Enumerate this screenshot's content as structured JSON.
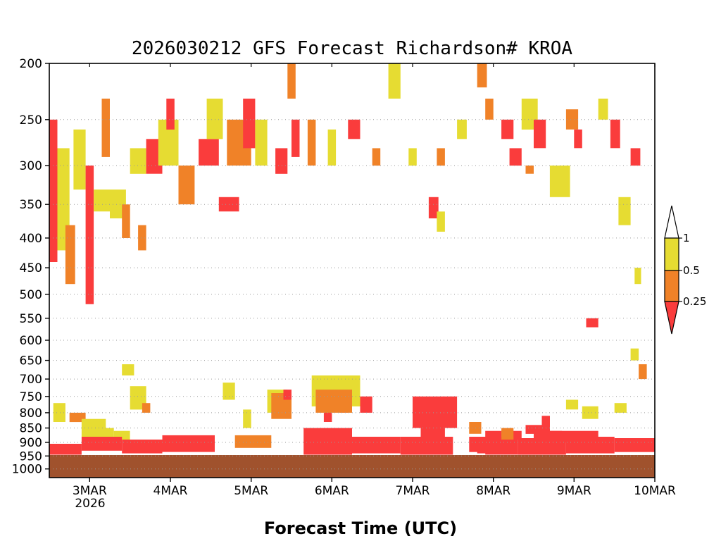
{
  "chart_data": {
    "type": "heatmap",
    "title": "2026030212 GFS Forecast Richardson# KROA",
    "xlabel": "Forecast Time (UTC)",
    "ylabel": "",
    "y_scale": "log-pressure",
    "ylim": [
      1000,
      200
    ],
    "y_ticks": [
      "200",
      "250",
      "300",
      "350",
      "400",
      "450",
      "500",
      "550",
      "600",
      "650",
      "700",
      "750",
      "800",
      "850",
      "900",
      "950",
      "1000"
    ],
    "y_tick_values": [
      200,
      250,
      300,
      350,
      400,
      450,
      500,
      550,
      600,
      650,
      700,
      750,
      800,
      850,
      900,
      950,
      1000
    ],
    "x_range_days": [
      "2026-03-02T12",
      "2026-03-10T00"
    ],
    "x_ticks": [
      "3MAR",
      "4MAR",
      "5MAR",
      "6MAR",
      "7MAR",
      "8MAR",
      "9MAR",
      "10MAR"
    ],
    "x_tick_year": "2026",
    "grid": "dotted horizontal at pressure levels",
    "colorbar": {
      "levels": [
        "1",
        "0.5",
        "0.25"
      ],
      "bins": [
        {
          "range": "0.5-1",
          "color": "#e6dc32"
        },
        {
          "range": "0.25-0.5",
          "color": "#f08228"
        },
        {
          "range": "<0.25",
          "color": "#fa3c3c"
        }
      ],
      "extend": "both"
    },
    "colors": {
      "yellow": "#e6dc32",
      "orange": "#f08228",
      "red": "#fa3c3c",
      "ground": "#a0522d"
    },
    "patches": [
      {
        "t": 0.0,
        "dt": 0.1,
        "p1": 250,
        "p2": 440,
        "c": "red"
      },
      {
        "t": 0.1,
        "dt": 0.15,
        "p1": 280,
        "p2": 420,
        "c": "yellow"
      },
      {
        "t": 0.2,
        "dt": 0.12,
        "p1": 380,
        "p2": 480,
        "c": "orange"
      },
      {
        "t": 0.3,
        "dt": 0.15,
        "p1": 260,
        "p2": 330,
        "c": "yellow"
      },
      {
        "t": 0.45,
        "dt": 0.1,
        "p1": 300,
        "p2": 520,
        "c": "red"
      },
      {
        "t": 0.55,
        "dt": 0.2,
        "p1": 330,
        "p2": 360,
        "c": "yellow"
      },
      {
        "t": 0.65,
        "dt": 0.1,
        "p1": 230,
        "p2": 290,
        "c": "orange"
      },
      {
        "t": 0.75,
        "dt": 0.2,
        "p1": 330,
        "p2": 370,
        "c": "yellow"
      },
      {
        "t": 0.9,
        "dt": 0.1,
        "p1": 350,
        "p2": 400,
        "c": "orange"
      },
      {
        "t": 1.0,
        "dt": 0.2,
        "p1": 280,
        "p2": 310,
        "c": "yellow"
      },
      {
        "t": 1.1,
        "dt": 0.1,
        "p1": 380,
        "p2": 420,
        "c": "orange"
      },
      {
        "t": 1.2,
        "dt": 0.2,
        "p1": 270,
        "p2": 310,
        "c": "red"
      },
      {
        "t": 1.35,
        "dt": 0.25,
        "p1": 250,
        "p2": 300,
        "c": "yellow"
      },
      {
        "t": 1.45,
        "dt": 0.1,
        "p1": 230,
        "p2": 260,
        "c": "red"
      },
      {
        "t": 1.6,
        "dt": 0.2,
        "p1": 300,
        "p2": 350,
        "c": "orange"
      },
      {
        "t": 1.85,
        "dt": 0.25,
        "p1": 270,
        "p2": 300,
        "c": "red"
      },
      {
        "t": 1.95,
        "dt": 0.2,
        "p1": 230,
        "p2": 270,
        "c": "yellow"
      },
      {
        "t": 2.1,
        "dt": 0.25,
        "p1": 340,
        "p2": 360,
        "c": "red"
      },
      {
        "t": 2.2,
        "dt": 0.3,
        "p1": 250,
        "p2": 300,
        "c": "orange"
      },
      {
        "t": 2.4,
        "dt": 0.15,
        "p1": 230,
        "p2": 280,
        "c": "red"
      },
      {
        "t": 2.55,
        "dt": 0.15,
        "p1": 250,
        "p2": 300,
        "c": "yellow"
      },
      {
        "t": 2.8,
        "dt": 0.15,
        "p1": 280,
        "p2": 310,
        "c": "red"
      },
      {
        "t": 2.95,
        "dt": 0.1,
        "p1": 200,
        "p2": 230,
        "c": "orange"
      },
      {
        "t": 3.0,
        "dt": 0.1,
        "p1": 250,
        "p2": 290,
        "c": "red"
      },
      {
        "t": 3.2,
        "dt": 0.1,
        "p1": 250,
        "p2": 300,
        "c": "orange"
      },
      {
        "t": 3.45,
        "dt": 0.1,
        "p1": 260,
        "p2": 300,
        "c": "yellow"
      },
      {
        "t": 3.7,
        "dt": 0.15,
        "p1": 250,
        "p2": 270,
        "c": "red"
      },
      {
        "t": 4.0,
        "dt": 0.1,
        "p1": 280,
        "p2": 300,
        "c": "orange"
      },
      {
        "t": 4.2,
        "dt": 0.15,
        "p1": 200,
        "p2": 230,
        "c": "yellow"
      },
      {
        "t": 4.45,
        "dt": 0.1,
        "p1": 280,
        "p2": 300,
        "c": "yellow"
      },
      {
        "t": 4.7,
        "dt": 0.12,
        "p1": 340,
        "p2": 370,
        "c": "red"
      },
      {
        "t": 4.8,
        "dt": 0.1,
        "p1": 280,
        "p2": 300,
        "c": "orange"
      },
      {
        "t": 4.8,
        "dt": 0.1,
        "p1": 360,
        "p2": 390,
        "c": "yellow"
      },
      {
        "t": 5.05,
        "dt": 0.12,
        "p1": 250,
        "p2": 270,
        "c": "yellow"
      },
      {
        "t": 5.3,
        "dt": 0.12,
        "p1": 200,
        "p2": 220,
        "c": "orange"
      },
      {
        "t": 5.4,
        "dt": 0.1,
        "p1": 230,
        "p2": 250,
        "c": "orange"
      },
      {
        "t": 5.6,
        "dt": 0.15,
        "p1": 250,
        "p2": 270,
        "c": "red"
      },
      {
        "t": 5.7,
        "dt": 0.15,
        "p1": 280,
        "p2": 300,
        "c": "red"
      },
      {
        "t": 5.85,
        "dt": 0.2,
        "p1": 230,
        "p2": 260,
        "c": "yellow"
      },
      {
        "t": 5.9,
        "dt": 0.1,
        "p1": 300,
        "p2": 310,
        "c": "orange"
      },
      {
        "t": 6.0,
        "dt": 0.15,
        "p1": 250,
        "p2": 280,
        "c": "red"
      },
      {
        "t": 6.2,
        "dt": 0.25,
        "p1": 300,
        "p2": 340,
        "c": "yellow"
      },
      {
        "t": 6.4,
        "dt": 0.15,
        "p1": 240,
        "p2": 260,
        "c": "orange"
      },
      {
        "t": 6.5,
        "dt": 0.1,
        "p1": 260,
        "p2": 280,
        "c": "red"
      },
      {
        "t": 6.8,
        "dt": 0.12,
        "p1": 230,
        "p2": 250,
        "c": "yellow"
      },
      {
        "t": 6.95,
        "dt": 0.12,
        "p1": 250,
        "p2": 280,
        "c": "red"
      },
      {
        "t": 7.05,
        "dt": 0.15,
        "p1": 340,
        "p2": 380,
        "c": "yellow"
      },
      {
        "t": 7.2,
        "dt": 0.12,
        "p1": 280,
        "p2": 300,
        "c": "red"
      },
      {
        "t": 0.05,
        "dt": 0.15,
        "p1": 770,
        "p2": 830,
        "c": "yellow"
      },
      {
        "t": 0.25,
        "dt": 0.2,
        "p1": 800,
        "p2": 830,
        "c": "orange"
      },
      {
        "t": 0.4,
        "dt": 0.3,
        "p1": 820,
        "p2": 880,
        "c": "yellow"
      },
      {
        "t": 0.5,
        "dt": 0.15,
        "p1": 860,
        "p2": 890,
        "c": "yellow"
      },
      {
        "t": 0.6,
        "dt": 0.2,
        "p1": 850,
        "p2": 880,
        "c": "yellow"
      },
      {
        "t": 0.8,
        "dt": 0.2,
        "p1": 860,
        "p2": 890,
        "c": "yellow"
      },
      {
        "t": 0.9,
        "dt": 0.15,
        "p1": 660,
        "p2": 690,
        "c": "yellow"
      },
      {
        "t": 1.0,
        "dt": 0.2,
        "p1": 720,
        "p2": 790,
        "c": "yellow"
      },
      {
        "t": 1.15,
        "dt": 0.1,
        "p1": 770,
        "p2": 800,
        "c": "orange"
      },
      {
        "t": 2.15,
        "dt": 0.15,
        "p1": 710,
        "p2": 760,
        "c": "yellow"
      },
      {
        "t": 2.4,
        "dt": 0.1,
        "p1": 790,
        "p2": 850,
        "c": "yellow"
      },
      {
        "t": 2.7,
        "dt": 0.25,
        "p1": 730,
        "p2": 800,
        "c": "yellow"
      },
      {
        "t": 2.75,
        "dt": 0.25,
        "p1": 740,
        "p2": 820,
        "c": "orange"
      },
      {
        "t": 2.9,
        "dt": 0.1,
        "p1": 730,
        "p2": 760,
        "c": "red"
      },
      {
        "t": 3.4,
        "dt": 0.1,
        "p1": 760,
        "p2": 830,
        "c": "red"
      },
      {
        "t": 3.6,
        "dt": 0.1,
        "p1": 760,
        "p2": 800,
        "c": "red"
      },
      {
        "t": 3.85,
        "dt": 0.15,
        "p1": 750,
        "p2": 800,
        "c": "red"
      },
      {
        "t": 4.5,
        "dt": 0.2,
        "p1": 800,
        "p2": 830,
        "c": "yellow"
      },
      {
        "t": 4.85,
        "dt": 0.12,
        "p1": 780,
        "p2": 810,
        "c": "red"
      },
      {
        "t": 5.2,
        "dt": 0.15,
        "p1": 830,
        "p2": 870,
        "c": "orange"
      },
      {
        "t": 5.4,
        "dt": 0.2,
        "p1": 860,
        "p2": 890,
        "c": "red"
      },
      {
        "t": 5.6,
        "dt": 0.25,
        "p1": 860,
        "p2": 890,
        "c": "red"
      },
      {
        "t": 5.9,
        "dt": 0.3,
        "p1": 840,
        "p2": 870,
        "c": "red"
      },
      {
        "t": 6.1,
        "dt": 0.25,
        "p1": 860,
        "p2": 890,
        "c": "red"
      },
      {
        "t": 6.4,
        "dt": 0.15,
        "p1": 760,
        "p2": 790,
        "c": "yellow"
      },
      {
        "t": 6.6,
        "dt": 0.2,
        "p1": 780,
        "p2": 820,
        "c": "yellow"
      },
      {
        "t": 6.65,
        "dt": 0.15,
        "p1": 550,
        "p2": 570,
        "c": "red"
      },
      {
        "t": 7.0,
        "dt": 0.15,
        "p1": 770,
        "p2": 800,
        "c": "yellow"
      },
      {
        "t": 7.2,
        "dt": 0.1,
        "p1": 620,
        "p2": 650,
        "c": "yellow"
      },
      {
        "t": 7.25,
        "dt": 0.08,
        "p1": 450,
        "p2": 480,
        "c": "yellow"
      },
      {
        "t": 7.3,
        "dt": 0.1,
        "p1": 660,
        "p2": 700,
        "c": "orange"
      }
    ],
    "bands": [
      {
        "t1": 0.0,
        "t2": 0.4,
        "p1": 905,
        "p2": 945,
        "c": "red"
      },
      {
        "t1": 0.4,
        "t2": 0.9,
        "p1": 880,
        "p2": 930,
        "c": "red"
      },
      {
        "t1": 0.9,
        "t2": 1.4,
        "p1": 890,
        "p2": 940,
        "c": "red"
      },
      {
        "t1": 1.4,
        "t2": 2.05,
        "p1": 875,
        "p2": 935,
        "c": "red"
      },
      {
        "t1": 2.3,
        "t2": 2.75,
        "p1": 875,
        "p2": 920,
        "c": "orange"
      },
      {
        "t1": 3.15,
        "t2": 3.75,
        "p1": 850,
        "p2": 945,
        "c": "red"
      },
      {
        "t1": 3.75,
        "t2": 4.35,
        "p1": 880,
        "p2": 940,
        "c": "red"
      },
      {
        "t1": 4.35,
        "t2": 5.0,
        "p1": 880,
        "p2": 945,
        "c": "red"
      },
      {
        "t1": 5.4,
        "t2": 5.8,
        "p1": 890,
        "p2": 945,
        "c": "red"
      },
      {
        "t1": 5.8,
        "t2": 6.4,
        "p1": 885,
        "p2": 945,
        "c": "red"
      },
      {
        "t1": 6.4,
        "t2": 7.0,
        "p1": 880,
        "p2": 940,
        "c": "red"
      },
      {
        "t1": 7.0,
        "t2": 7.5,
        "p1": 885,
        "p2": 935,
        "c": "red"
      }
    ],
    "cores": [
      {
        "t": 3.25,
        "dt": 0.6,
        "p1": 690,
        "p2": 780,
        "c": "yellow"
      },
      {
        "t": 3.3,
        "dt": 0.45,
        "p1": 730,
        "p2": 800,
        "c": "orange"
      },
      {
        "t": 4.5,
        "dt": 0.55,
        "p1": 750,
        "p2": 850,
        "c": "red"
      },
      {
        "t": 4.6,
        "dt": 0.3,
        "p1": 820,
        "p2": 880,
        "c": "red"
      },
      {
        "t": 5.2,
        "dt": 0.45,
        "p1": 880,
        "p2": 935,
        "c": "red"
      },
      {
        "t": 5.3,
        "dt": 0.3,
        "p1": 900,
        "p2": 940,
        "c": "red"
      },
      {
        "t": 5.6,
        "dt": 0.15,
        "p1": 850,
        "p2": 890,
        "c": "orange"
      },
      {
        "t": 6.0,
        "dt": 0.8,
        "p1": 860,
        "p2": 900,
        "c": "red"
      },
      {
        "t": 6.1,
        "dt": 0.1,
        "p1": 810,
        "p2": 870,
        "c": "red"
      }
    ]
  }
}
